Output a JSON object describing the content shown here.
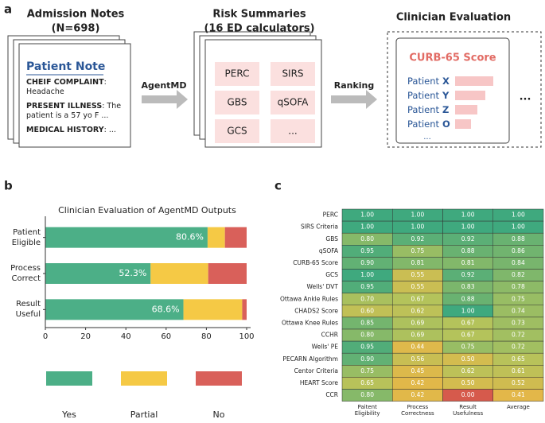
{
  "panel_a": {
    "label": "a",
    "notes_title": "Admission Notes",
    "notes_count": "(N=698)",
    "note": {
      "title": "Patient Note",
      "fields": [
        {
          "key": "CHEIF COMPLAINT",
          "text": ": Headache"
        },
        {
          "key": "PRESENT ILLNESS",
          "text": ": The patient is a 57 yo F ..."
        },
        {
          "key": "MEDICAL HISTORY",
          "text": ": ..."
        }
      ]
    },
    "step1": "AgentMD",
    "summaries_title": "Risk Summaries",
    "summaries_count": "(16 ED calculators)",
    "calculators": [
      "PERC",
      "SIRS",
      "GBS",
      "qSOFA",
      "GCS",
      "..."
    ],
    "step2": "Ranking",
    "evaluation_title": "Clinician Evaluation",
    "evaluation": {
      "calculator": "CURB-65 Score",
      "patients": [
        {
          "prefix": "Patient",
          "id": "X"
        },
        {
          "prefix": "Patient",
          "id": "Y"
        },
        {
          "prefix": "Patient",
          "id": "Z"
        },
        {
          "prefix": "Patient",
          "id": "O"
        }
      ],
      "more": "...",
      "more_outer": "..."
    }
  },
  "chart_data": [
    {
      "type": "bar",
      "orientation": "horizontal",
      "stacked": true,
      "label": "b",
      "title": "Clinician Evaluation of AgentMD Outputs",
      "categories": [
        "Patient Eligible",
        "Process Correct",
        "Result Useful"
      ],
      "series": [
        {
          "name": "Yes",
          "color": "#4caf87",
          "values": [
            80.6,
            52.3,
            68.6
          ],
          "value_labels": [
            "80.6%",
            "52.3%",
            "68.6%"
          ]
        },
        {
          "name": "Partial",
          "color": "#f5c945",
          "values": [
            8.6,
            28.6,
            29.2
          ]
        },
        {
          "name": "No",
          "color": "#d9605a",
          "values": [
            10.8,
            19.1,
            2.2
          ]
        }
      ],
      "xlim": [
        0,
        100
      ],
      "xticks": [
        0,
        20,
        40,
        60,
        80,
        100
      ],
      "legend": "bottom"
    },
    {
      "type": "heatmap",
      "label": "c",
      "rows": [
        "PERC",
        "SIRS Criteria",
        "GBS",
        "qSOFA",
        "CURB-65 Score",
        "GCS",
        "Wells' DVT",
        "Ottawa Ankle Rules",
        "CHADS2 Score",
        "Ottawa Knee Rules",
        "CCHR",
        "Wells' PE",
        "PECARN Algorithm",
        "Centor Criteria",
        "HEART Score",
        "CCR"
      ],
      "columns": [
        "Paitent Eligibility",
        "Process Correctness",
        "Result Usefulness",
        "Average"
      ],
      "values": [
        [
          1,
          1,
          1,
          1
        ],
        [
          1,
          1,
          1,
          1
        ],
        [
          0.8,
          0.92,
          0.92,
          0.88
        ],
        [
          0.95,
          0.75,
          0.88,
          0.86
        ],
        [
          0.9,
          0.81,
          0.81,
          0.84
        ],
        [
          1,
          0.55,
          0.92,
          0.82
        ],
        [
          0.95,
          0.55,
          0.83,
          0.78
        ],
        [
          0.7,
          0.67,
          0.88,
          0.75
        ],
        [
          0.6,
          0.62,
          1,
          0.74
        ],
        [
          0.85,
          0.69,
          0.67,
          0.73
        ],
        [
          0.8,
          0.69,
          0.67,
          0.72
        ],
        [
          0.95,
          0.44,
          0.75,
          0.72
        ],
        [
          0.9,
          0.56,
          0.5,
          0.65
        ],
        [
          0.75,
          0.45,
          0.62,
          0.61
        ],
        [
          0.65,
          0.42,
          0.5,
          0.52
        ],
        [
          0.8,
          0.42,
          0,
          0.41
        ]
      ],
      "value_labels": [
        [
          "1.00",
          "1.00",
          "1.00",
          "1.00"
        ],
        [
          "1.00",
          "1.00",
          "1.00",
          "1.00"
        ],
        [
          "0.80",
          "0.92",
          "0.92",
          "0.88"
        ],
        [
          "0.95",
          "0.75",
          "0.88",
          "0.86"
        ],
        [
          "0.90",
          "0.81",
          "0.81",
          "0.84"
        ],
        [
          "1.00",
          "0.55",
          "0.92",
          "0.82"
        ],
        [
          "0.95",
          "0.55",
          "0.83",
          "0.78"
        ],
        [
          "0.70",
          "0.67",
          "0.88",
          "0.75"
        ],
        [
          "0.60",
          "0.62",
          "1.00",
          "0.74"
        ],
        [
          "0.85",
          "0.69",
          "0.67",
          "0.73"
        ],
        [
          "0.80",
          "0.69",
          "0.67",
          "0.72"
        ],
        [
          "0.95",
          "0.44",
          "0.75",
          "0.72"
        ],
        [
          "0.90",
          "0.56",
          "0.50",
          "0.65"
        ],
        [
          "0.75",
          "0.45",
          "0.62",
          "0.61"
        ],
        [
          "0.65",
          "0.42",
          "0.50",
          "0.52"
        ],
        [
          "0.80",
          "0.42",
          "0.00",
          "0.41"
        ]
      ],
      "clim": [
        0,
        1
      ],
      "colormap": [
        "#d65a4c",
        "#f1b443",
        "#b5c35b",
        "#3fa97e"
      ]
    }
  ]
}
